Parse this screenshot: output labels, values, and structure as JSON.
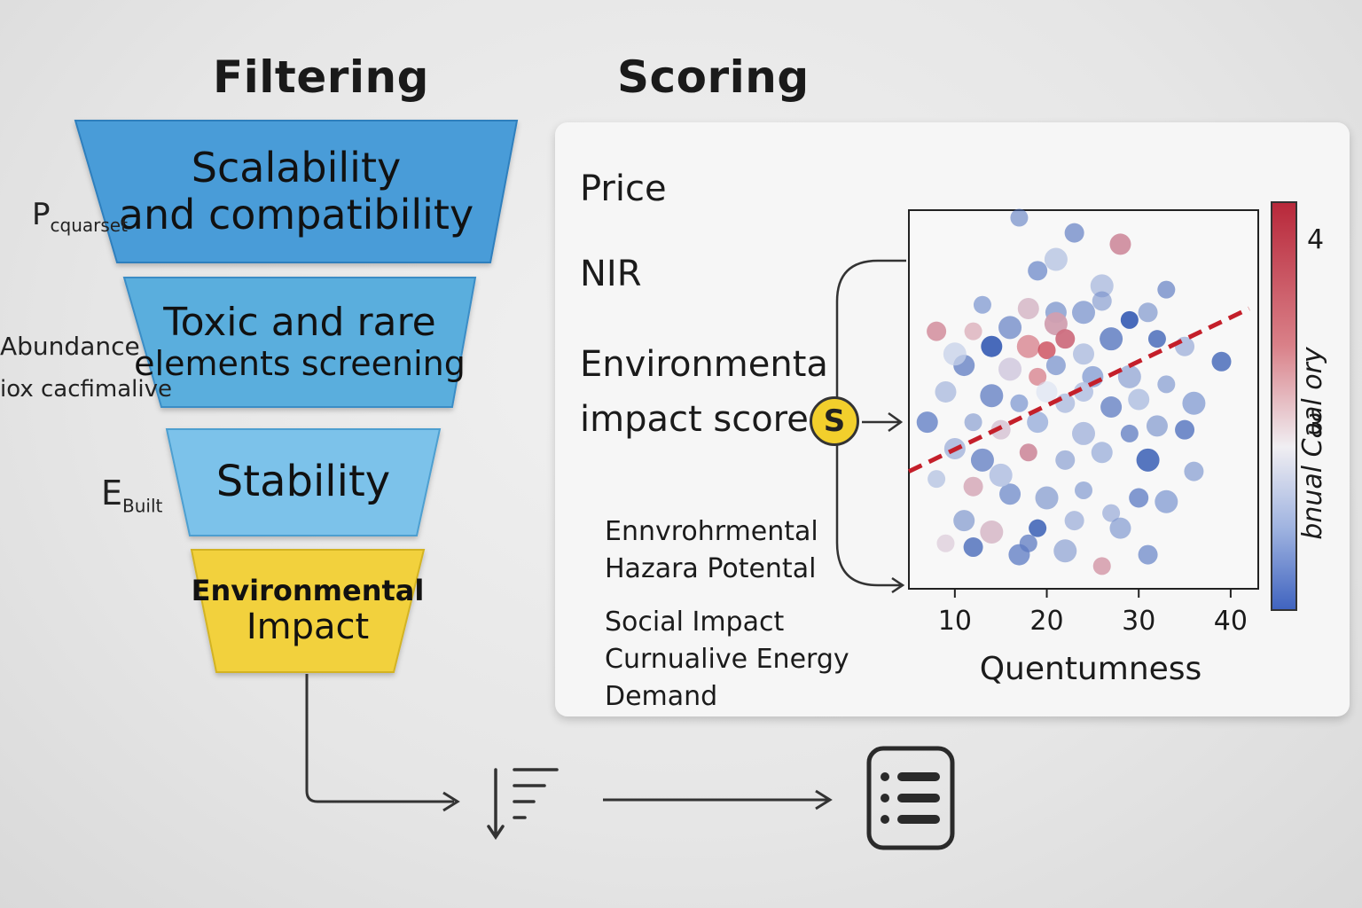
{
  "headings": {
    "filtering": "Filtering",
    "scoring": "Scoring"
  },
  "funnel": {
    "stage1": {
      "line1": "Scalability",
      "line2": "and compatibility"
    },
    "stage2": {
      "line1": "Toxic and rare",
      "line2": "elements screening"
    },
    "stage3": {
      "line1": "Stability"
    },
    "stage4": {
      "line1": "Environmental",
      "line2": "Impact"
    }
  },
  "side_labels": {
    "p_main": "P",
    "p_sub": "cquarset",
    "abundance": "Abundance",
    "toxicity": "iox cacfimalive",
    "e_main": "E",
    "e_sub": "Built"
  },
  "criteria": {
    "price": "Price",
    "nir": "NIR",
    "env_line1": "Environmenta",
    "env_line2": "impact score",
    "hazard_line1": "Ennvrohrmental",
    "hazard_line2": "Hazara Potental",
    "social": "Social Impact",
    "ced_line1": "Curnualive Energy",
    "ced_line2": "Demand"
  },
  "badge": {
    "label": "S"
  },
  "colors": {
    "funnel_blue_dark": "#3d8fd0",
    "funnel_blue_mid": "#55a8db",
    "funnel_blue_light": "#74bde6",
    "funnel_yellow": "#f1cf3a",
    "point_red": "#c83040",
    "point_blue": "#2f56b0",
    "trend": "#c41f2a"
  },
  "icons": {
    "sort": "sort-descending-icon",
    "list": "list-icon"
  },
  "chart_data": {
    "type": "scatter",
    "xlabel": "Quentumness",
    "ylabel": "",
    "colorbar_label": "bnual Caal ory",
    "xlim": [
      5,
      43
    ],
    "ylim": [
      0,
      10
    ],
    "xticks": [
      10,
      20,
      30,
      40
    ],
    "colorbar_ticks": [
      3,
      4
    ],
    "colorbar_range": [
      2,
      4.2
    ],
    "grid": false,
    "trendline": {
      "x": [
        5,
        42
      ],
      "y": [
        3.1,
        7.4
      ]
    },
    "points": [
      {
        "x": 17,
        "y": 9.8,
        "c": 2.2
      },
      {
        "x": 23,
        "y": 9.4,
        "c": 2.4
      },
      {
        "x": 28,
        "y": 9.1,
        "c": 3.6
      },
      {
        "x": 26,
        "y": 8.0,
        "c": 2.6
      },
      {
        "x": 33,
        "y": 7.9,
        "c": 2.4
      },
      {
        "x": 19,
        "y": 8.4,
        "c": 2.6
      },
      {
        "x": 21,
        "y": 7.3,
        "c": 2.2
      },
      {
        "x": 24,
        "y": 7.3,
        "c": 2.5
      },
      {
        "x": 29,
        "y": 7.1,
        "c": 2.1
      },
      {
        "x": 31,
        "y": 7.3,
        "c": 2.3
      },
      {
        "x": 18,
        "y": 7.4,
        "c": 3.4
      },
      {
        "x": 21,
        "y": 7.0,
        "c": 3.5
      },
      {
        "x": 12,
        "y": 6.8,
        "c": 3.6
      },
      {
        "x": 8,
        "y": 6.8,
        "c": 3.7
      },
      {
        "x": 14,
        "y": 6.4,
        "c": 2.1
      },
      {
        "x": 18,
        "y": 6.4,
        "c": 4.0
      },
      {
        "x": 20,
        "y": 6.3,
        "c": 4.1
      },
      {
        "x": 22,
        "y": 6.6,
        "c": 3.8
      },
      {
        "x": 24,
        "y": 6.2,
        "c": 2.6
      },
      {
        "x": 27,
        "y": 6.6,
        "c": 2.2
      },
      {
        "x": 32,
        "y": 6.6,
        "c": 2.3
      },
      {
        "x": 35,
        "y": 6.4,
        "c": 2.5
      },
      {
        "x": 11,
        "y": 5.9,
        "c": 2.3
      },
      {
        "x": 16,
        "y": 5.8,
        "c": 3.2
      },
      {
        "x": 19,
        "y": 5.6,
        "c": 4.0
      },
      {
        "x": 21,
        "y": 5.9,
        "c": 2.5
      },
      {
        "x": 25,
        "y": 5.6,
        "c": 2.7
      },
      {
        "x": 29,
        "y": 5.6,
        "c": 2.4
      },
      {
        "x": 33,
        "y": 5.4,
        "c": 2.6
      },
      {
        "x": 39,
        "y": 6.0,
        "c": 2.3
      },
      {
        "x": 9,
        "y": 5.2,
        "c": 2.6
      },
      {
        "x": 14,
        "y": 5.1,
        "c": 2.3
      },
      {
        "x": 17,
        "y": 4.9,
        "c": 2.7
      },
      {
        "x": 22,
        "y": 4.9,
        "c": 2.6
      },
      {
        "x": 27,
        "y": 4.8,
        "c": 2.3
      },
      {
        "x": 36,
        "y": 4.9,
        "c": 2.7
      },
      {
        "x": 12,
        "y": 4.4,
        "c": 2.4
      },
      {
        "x": 15,
        "y": 4.2,
        "c": 3.3
      },
      {
        "x": 19,
        "y": 4.4,
        "c": 2.8
      },
      {
        "x": 24,
        "y": 4.1,
        "c": 2.5
      },
      {
        "x": 29,
        "y": 4.1,
        "c": 2.3
      },
      {
        "x": 35,
        "y": 4.2,
        "c": 2.4
      },
      {
        "x": 10,
        "y": 3.7,
        "c": 2.5
      },
      {
        "x": 13,
        "y": 3.4,
        "c": 2.3
      },
      {
        "x": 18,
        "y": 3.6,
        "c": 3.6
      },
      {
        "x": 22,
        "y": 3.4,
        "c": 2.4
      },
      {
        "x": 26,
        "y": 3.6,
        "c": 2.7
      },
      {
        "x": 31,
        "y": 3.4,
        "c": 2.2
      },
      {
        "x": 8,
        "y": 2.9,
        "c": 2.7
      },
      {
        "x": 12,
        "y": 2.7,
        "c": 3.5
      },
      {
        "x": 16,
        "y": 2.5,
        "c": 2.6
      },
      {
        "x": 20,
        "y": 2.4,
        "c": 2.3
      },
      {
        "x": 24,
        "y": 2.6,
        "c": 2.6
      },
      {
        "x": 30,
        "y": 2.4,
        "c": 2.5
      },
      {
        "x": 11,
        "y": 1.8,
        "c": 2.3
      },
      {
        "x": 14,
        "y": 1.5,
        "c": 3.4
      },
      {
        "x": 19,
        "y": 1.6,
        "c": 2.2
      },
      {
        "x": 23,
        "y": 1.8,
        "c": 2.5
      },
      {
        "x": 28,
        "y": 1.6,
        "c": 2.6
      },
      {
        "x": 33,
        "y": 2.3,
        "c": 2.7
      },
      {
        "x": 9,
        "y": 1.2,
        "c": 3.3
      },
      {
        "x": 12,
        "y": 1.1,
        "c": 2.1
      },
      {
        "x": 17,
        "y": 0.9,
        "c": 2.5
      },
      {
        "x": 22,
        "y": 1.0,
        "c": 2.4
      },
      {
        "x": 26,
        "y": 0.6,
        "c": 3.6
      },
      {
        "x": 31,
        "y": 0.9,
        "c": 2.6
      },
      {
        "x": 20,
        "y": 5.2,
        "c": 3.1
      },
      {
        "x": 16,
        "y": 6.9,
        "c": 2.4
      },
      {
        "x": 13,
        "y": 7.5,
        "c": 2.7
      },
      {
        "x": 26,
        "y": 7.6,
        "c": 2.4
      },
      {
        "x": 30,
        "y": 5.0,
        "c": 2.8
      },
      {
        "x": 15,
        "y": 3.0,
        "c": 2.9
      },
      {
        "x": 27,
        "y": 2.0,
        "c": 2.5
      },
      {
        "x": 36,
        "y": 3.1,
        "c": 2.6
      },
      {
        "x": 7,
        "y": 4.4,
        "c": 2.5
      },
      {
        "x": 21,
        "y": 8.7,
        "c": 2.7
      },
      {
        "x": 18,
        "y": 1.2,
        "c": 2.3
      },
      {
        "x": 24,
        "y": 5.2,
        "c": 2.9
      },
      {
        "x": 32,
        "y": 4.3,
        "c": 2.3
      },
      {
        "x": 10,
        "y": 6.2,
        "c": 3.0
      }
    ]
  }
}
